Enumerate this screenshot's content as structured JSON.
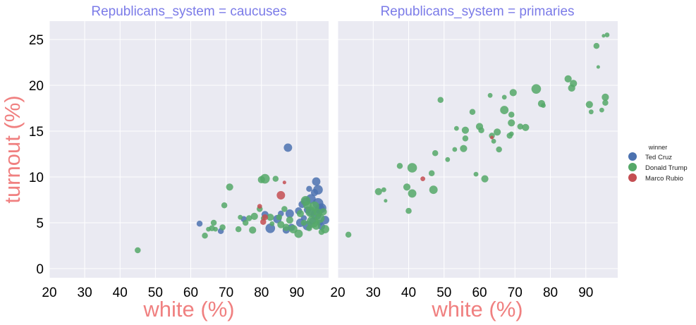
{
  "colors": {
    "panel_bg": "#eaeaf2",
    "grid": "#ffffff",
    "title": "#7b7be8",
    "axis_label": "#f08080",
    "Ted Cruz": "#4c72b0",
    "Donald Trump": "#55a868",
    "Marco Rubio": "#c44e52"
  },
  "chart_data": [
    {
      "type": "scatter",
      "title": "Republicans_system = caucuses",
      "xlabel": "white (%)",
      "ylabel": "turnout (%)",
      "xlim": [
        20,
        99
      ],
      "ylim": [
        -1,
        27
      ],
      "xticks": [
        "20",
        "30",
        "40",
        "50",
        "60",
        "70",
        "80",
        "90"
      ],
      "yticks": [
        "0",
        "5",
        "10",
        "15",
        "20",
        "25"
      ],
      "grid": true,
      "series": [
        {
          "name": "Ted Cruz",
          "points": [
            {
              "x": 62.5,
              "y": 4.9,
              "s": 5
            },
            {
              "x": 68.5,
              "y": 4.1,
              "s": 5
            },
            {
              "x": 75.0,
              "y": 5.4,
              "s": 5
            },
            {
              "x": 81.0,
              "y": 5.9,
              "s": 6
            },
            {
              "x": 82.5,
              "y": 4.4,
              "s": 8
            },
            {
              "x": 84.5,
              "y": 5.4,
              "s": 7
            },
            {
              "x": 85.5,
              "y": 6.0,
              "s": 5
            },
            {
              "x": 87.0,
              "y": 4.2,
              "s": 6
            },
            {
              "x": 87.5,
              "y": 13.2,
              "s": 7
            },
            {
              "x": 88.0,
              "y": 6.0,
              "s": 7
            },
            {
              "x": 88.5,
              "y": 4.5,
              "s": 6
            },
            {
              "x": 90.5,
              "y": 6.3,
              "s": 6
            },
            {
              "x": 91.0,
              "y": 5.0,
              "s": 7
            },
            {
              "x": 91.5,
              "y": 7.0,
              "s": 6
            },
            {
              "x": 92.0,
              "y": 5.5,
              "s": 5
            },
            {
              "x": 92.5,
              "y": 7.3,
              "s": 7
            },
            {
              "x": 93.0,
              "y": 4.7,
              "s": 8
            },
            {
              "x": 93.0,
              "y": 6.4,
              "s": 6
            },
            {
              "x": 93.5,
              "y": 8.7,
              "s": 5
            },
            {
              "x": 94.0,
              "y": 6.2,
              "s": 7
            },
            {
              "x": 94.0,
              "y": 7.6,
              "s": 8
            },
            {
              "x": 94.5,
              "y": 5.2,
              "s": 6
            },
            {
              "x": 95.0,
              "y": 8.3,
              "s": 6
            },
            {
              "x": 95.5,
              "y": 5.9,
              "s": 9
            },
            {
              "x": 95.5,
              "y": 9.5,
              "s": 7
            },
            {
              "x": 96.0,
              "y": 8.6,
              "s": 8
            },
            {
              "x": 96.0,
              "y": 7.1,
              "s": 9
            },
            {
              "x": 96.5,
              "y": 6.5,
              "s": 8
            },
            {
              "x": 96.5,
              "y": 5.0,
              "s": 5
            },
            {
              "x": 97.0,
              "y": 6.6,
              "s": 8
            },
            {
              "x": 97.0,
              "y": 4.6,
              "s": 6
            },
            {
              "x": 98.0,
              "y": 5.3,
              "s": 7
            }
          ]
        },
        {
          "name": "Donald Trump",
          "points": [
            {
              "x": 45.0,
              "y": 2.0,
              "s": 5
            },
            {
              "x": 64.0,
              "y": 3.6,
              "s": 5
            },
            {
              "x": 65.0,
              "y": 4.3,
              "s": 4
            },
            {
              "x": 66.0,
              "y": 4.4,
              "s": 5
            },
            {
              "x": 66.5,
              "y": 5.0,
              "s": 5
            },
            {
              "x": 67.0,
              "y": 4.3,
              "s": 4
            },
            {
              "x": 69.0,
              "y": 4.5,
              "s": 5
            },
            {
              "x": 69.5,
              "y": 6.9,
              "s": 5
            },
            {
              "x": 71.0,
              "y": 8.9,
              "s": 6
            },
            {
              "x": 73.5,
              "y": 4.3,
              "s": 5
            },
            {
              "x": 74.0,
              "y": 5.6,
              "s": 4
            },
            {
              "x": 75.5,
              "y": 5.0,
              "s": 5
            },
            {
              "x": 76.5,
              "y": 5.5,
              "s": 5
            },
            {
              "x": 77.5,
              "y": 4.2,
              "s": 6
            },
            {
              "x": 78.0,
              "y": 5.7,
              "s": 6
            },
            {
              "x": 79.5,
              "y": 6.5,
              "s": 5
            },
            {
              "x": 80.0,
              "y": 9.7,
              "s": 6
            },
            {
              "x": 80.5,
              "y": 5.5,
              "s": 4
            },
            {
              "x": 81.0,
              "y": 9.8,
              "s": 8
            },
            {
              "x": 82.5,
              "y": 5.6,
              "s": 6
            },
            {
              "x": 83.0,
              "y": 4.9,
              "s": 4
            },
            {
              "x": 84.0,
              "y": 9.8,
              "s": 5
            },
            {
              "x": 85.0,
              "y": 5.6,
              "s": 5
            },
            {
              "x": 85.5,
              "y": 4.8,
              "s": 6
            },
            {
              "x": 86.5,
              "y": 6.5,
              "s": 5
            },
            {
              "x": 87.0,
              "y": 4.5,
              "s": 6
            },
            {
              "x": 88.0,
              "y": 5.3,
              "s": 6
            },
            {
              "x": 89.0,
              "y": 4.3,
              "s": 7
            },
            {
              "x": 90.5,
              "y": 3.8,
              "s": 7
            },
            {
              "x": 91.0,
              "y": 6.0,
              "s": 6
            },
            {
              "x": 92.0,
              "y": 5.0,
              "s": 5
            },
            {
              "x": 92.5,
              "y": 7.4,
              "s": 8
            },
            {
              "x": 93.0,
              "y": 6.9,
              "s": 7
            },
            {
              "x": 93.5,
              "y": 4.4,
              "s": 5
            },
            {
              "x": 94.0,
              "y": 6.2,
              "s": 9
            },
            {
              "x": 94.5,
              "y": 5.1,
              "s": 10
            },
            {
              "x": 95.0,
              "y": 6.8,
              "s": 8
            },
            {
              "x": 95.5,
              "y": 4.7,
              "s": 7
            },
            {
              "x": 96.0,
              "y": 6.1,
              "s": 7
            },
            {
              "x": 96.5,
              "y": 5.5,
              "s": 8
            },
            {
              "x": 97.0,
              "y": 4.0,
              "s": 5
            },
            {
              "x": 97.5,
              "y": 6.2,
              "s": 6
            },
            {
              "x": 98.0,
              "y": 4.3,
              "s": 7
            }
          ]
        },
        {
          "name": "Marco Rubio",
          "points": [
            {
              "x": 79.5,
              "y": 6.8,
              "s": 4
            },
            {
              "x": 80.5,
              "y": 5.1,
              "s": 5
            },
            {
              "x": 81.0,
              "y": 5.6,
              "s": 5
            },
            {
              "x": 85.5,
              "y": 8.0,
              "s": 7
            },
            {
              "x": 86.5,
              "y": 9.4,
              "s": 3
            }
          ]
        }
      ]
    },
    {
      "type": "scatter",
      "title": "Republicans_system = primaries",
      "xlabel": "white (%)",
      "ylabel": "",
      "xlim": [
        20,
        99
      ],
      "ylim": [
        -1,
        27
      ],
      "xticks": [
        "20",
        "30",
        "40",
        "50",
        "60",
        "70",
        "80",
        "90"
      ],
      "yticks": [],
      "grid": true,
      "series": [
        {
          "name": "Donald Trump",
          "points": [
            {
              "x": 23.0,
              "y": 3.7,
              "s": 5
            },
            {
              "x": 31.5,
              "y": 8.4,
              "s": 6
            },
            {
              "x": 33.0,
              "y": 8.6,
              "s": 4
            },
            {
              "x": 33.5,
              "y": 7.4,
              "s": 3
            },
            {
              "x": 37.5,
              "y": 11.2,
              "s": 5
            },
            {
              "x": 39.5,
              "y": 8.9,
              "s": 6
            },
            {
              "x": 40.0,
              "y": 6.3,
              "s": 5
            },
            {
              "x": 41.0,
              "y": 11.0,
              "s": 8
            },
            {
              "x": 41.0,
              "y": 8.2,
              "s": 7
            },
            {
              "x": 46.5,
              "y": 10.4,
              "s": 5
            },
            {
              "x": 47.0,
              "y": 8.6,
              "s": 7
            },
            {
              "x": 47.5,
              "y": 12.6,
              "s": 5
            },
            {
              "x": 49.0,
              "y": 18.4,
              "s": 5
            },
            {
              "x": 51.0,
              "y": 11.9,
              "s": 4
            },
            {
              "x": 53.0,
              "y": 13.0,
              "s": 4
            },
            {
              "x": 53.5,
              "y": 15.3,
              "s": 4
            },
            {
              "x": 55.5,
              "y": 13.1,
              "s": 6
            },
            {
              "x": 56.0,
              "y": 15.1,
              "s": 6
            },
            {
              "x": 56.0,
              "y": 14.2,
              "s": 5
            },
            {
              "x": 58.0,
              "y": 17.1,
              "s": 5
            },
            {
              "x": 59.0,
              "y": 10.3,
              "s": 4
            },
            {
              "x": 60.0,
              "y": 15.5,
              "s": 6
            },
            {
              "x": 60.5,
              "y": 15.1,
              "s": 5
            },
            {
              "x": 61.5,
              "y": 9.8,
              "s": 6
            },
            {
              "x": 63.0,
              "y": 18.9,
              "s": 4
            },
            {
              "x": 63.5,
              "y": 14.5,
              "s": 5
            },
            {
              "x": 64.0,
              "y": 13.9,
              "s": 4
            },
            {
              "x": 65.0,
              "y": 14.9,
              "s": 6
            },
            {
              "x": 65.5,
              "y": 13.0,
              "s": 5
            },
            {
              "x": 67.0,
              "y": 18.7,
              "s": 4
            },
            {
              "x": 67.0,
              "y": 17.3,
              "s": 7
            },
            {
              "x": 68.5,
              "y": 14.5,
              "s": 5
            },
            {
              "x": 69.0,
              "y": 14.7,
              "s": 4
            },
            {
              "x": 69.0,
              "y": 16.8,
              "s": 5
            },
            {
              "x": 69.0,
              "y": 15.9,
              "s": 6
            },
            {
              "x": 69.5,
              "y": 19.2,
              "s": 6
            },
            {
              "x": 71.5,
              "y": 15.5,
              "s": 5
            },
            {
              "x": 73.0,
              "y": 15.4,
              "s": 6
            },
            {
              "x": 76.0,
              "y": 19.6,
              "s": 8
            },
            {
              "x": 77.5,
              "y": 18.0,
              "s": 6
            },
            {
              "x": 78.0,
              "y": 17.8,
              "s": 4
            },
            {
              "x": 85.0,
              "y": 20.7,
              "s": 6
            },
            {
              "x": 86.0,
              "y": 19.7,
              "s": 6
            },
            {
              "x": 86.5,
              "y": 20.2,
              "s": 6
            },
            {
              "x": 91.0,
              "y": 17.9,
              "s": 6
            },
            {
              "x": 91.5,
              "y": 17.1,
              "s": 4
            },
            {
              "x": 93.0,
              "y": 24.3,
              "s": 5
            },
            {
              "x": 93.5,
              "y": 22.0,
              "s": 3
            },
            {
              "x": 94.5,
              "y": 17.3,
              "s": 4
            },
            {
              "x": 95.0,
              "y": 25.4,
              "s": 3
            },
            {
              "x": 95.5,
              "y": 18.1,
              "s": 5
            },
            {
              "x": 95.5,
              "y": 18.7,
              "s": 6
            },
            {
              "x": 96.0,
              "y": 25.5,
              "s": 4
            }
          ]
        },
        {
          "name": "Marco Rubio",
          "points": [
            {
              "x": 44.0,
              "y": 9.8,
              "s": 4
            },
            {
              "x": 63.5,
              "y": 14.3,
              "s": 3
            }
          ]
        }
      ]
    }
  ],
  "legend": {
    "title": "winner",
    "placement": "right",
    "entries": [
      "Ted Cruz",
      "Donald Trump",
      "Marco Rubio"
    ]
  }
}
